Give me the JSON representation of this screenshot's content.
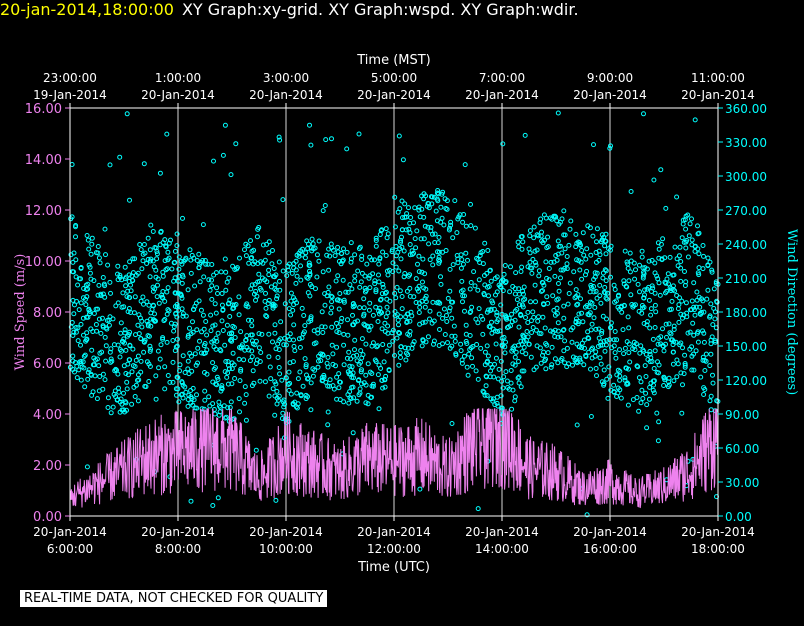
{
  "header": {
    "timestamp": "20-jan-2014,18:00:00",
    "graph_titles": "XY Graph:xy-grid.  XY Graph:wspd.  XY Graph:wdir."
  },
  "notice": "REAL-TIME DATA, NOT CHECKED FOR QUALITY",
  "colors": {
    "background": "#000000",
    "wind_speed": "#ee82ee",
    "wind_direction": "#00ffff",
    "grid": "#ffffff",
    "timestamp": "#ffff00"
  },
  "chart_data": {
    "type": "scatter",
    "grid": true,
    "top_axis": {
      "label": "Time (MST)",
      "ticks": [
        {
          "time": "23:00:00",
          "date": "19-Jan-2014"
        },
        {
          "time": "1:00:00",
          "date": "20-Jan-2014"
        },
        {
          "time": "3:00:00",
          "date": "20-Jan-2014"
        },
        {
          "time": "5:00:00",
          "date": "20-Jan-2014"
        },
        {
          "time": "7:00:00",
          "date": "20-Jan-2014"
        },
        {
          "time": "9:00:00",
          "date": "20-Jan-2014"
        },
        {
          "time": "11:00:00",
          "date": "20-Jan-2014"
        }
      ]
    },
    "bottom_axis": {
      "label": "Time (UTC)",
      "xlim": [
        "2014-01-20 06:00",
        "2014-01-20 18:00"
      ],
      "ticks": [
        {
          "date": "20-Jan-2014",
          "time": "6:00:00"
        },
        {
          "date": "20-Jan-2014",
          "time": "8:00:00"
        },
        {
          "date": "20-Jan-2014",
          "time": "10:00:00"
        },
        {
          "date": "20-Jan-2014",
          "time": "12:00:00"
        },
        {
          "date": "20-Jan-2014",
          "time": "14:00:00"
        },
        {
          "date": "20-Jan-2014",
          "time": "16:00:00"
        },
        {
          "date": "20-Jan-2014",
          "time": "18:00:00"
        }
      ]
    },
    "left_axis": {
      "label": "Wind Speed (m/s)",
      "ylim": [
        0,
        16
      ],
      "ticks": [
        "0.00",
        "2.00",
        "4.00",
        "6.00",
        "8.00",
        "10.00",
        "12.00",
        "14.00",
        "16.00"
      ]
    },
    "right_axis": {
      "label": "Wind Direction (degrees)",
      "ylim": [
        0,
        360
      ],
      "ticks": [
        "0.00",
        "30.00",
        "60.00",
        "90.00",
        "120.00",
        "150.00",
        "180.00",
        "210.00",
        "240.00",
        "270.00",
        "300.00",
        "330.00",
        "360.00"
      ]
    },
    "series": [
      {
        "name": "Wind Speed (m/s)",
        "style": "line",
        "color": "#ee82ee",
        "x_hours_utc": [
          6.0,
          6.5,
          7.0,
          7.5,
          8.0,
          8.5,
          9.0,
          9.5,
          10.0,
          10.5,
          11.0,
          11.5,
          12.0,
          12.5,
          13.0,
          13.5,
          14.0,
          14.5,
          15.0,
          15.5,
          16.0,
          16.5,
          17.0,
          17.5,
          18.0
        ],
        "values": [
          0.8,
          1.4,
          2.0,
          2.6,
          2.8,
          3.1,
          2.9,
          1.6,
          2.8,
          2.3,
          1.9,
          2.5,
          2.4,
          2.6,
          2.0,
          3.2,
          3.6,
          2.1,
          1.9,
          1.2,
          1.5,
          1.0,
          1.3,
          2.0,
          3.6
        ]
      },
      {
        "name": "Wind Direction (degrees)",
        "style": "scatter",
        "color": "#00ffff",
        "x_hours_utc": [
          6.0,
          6.5,
          7.0,
          7.5,
          8.0,
          8.5,
          9.0,
          9.5,
          10.0,
          10.5,
          11.0,
          11.5,
          12.0,
          12.5,
          13.0,
          13.5,
          14.0,
          14.5,
          15.0,
          15.5,
          16.0,
          16.5,
          17.0,
          17.5,
          18.0
        ],
        "values": [
          200,
          170,
          150,
          190,
          170,
          160,
          150,
          190,
          150,
          180,
          170,
          165,
          200,
          215,
          220,
          190,
          150,
          190,
          200,
          200,
          170,
          160,
          180,
          200,
          150
        ]
      }
    ]
  }
}
